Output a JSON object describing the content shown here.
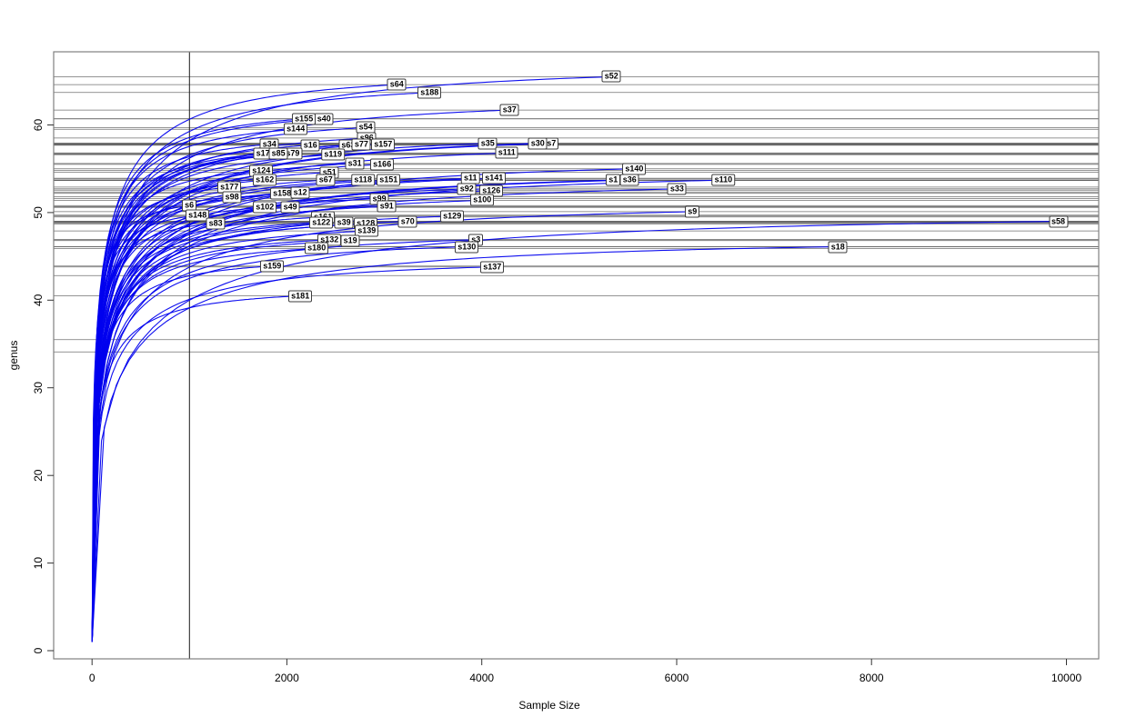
{
  "chart_data": {
    "type": "line",
    "title": "",
    "xlabel": "Sample Size",
    "ylabel": "genus",
    "xticks": [
      0,
      2000,
      4000,
      6000,
      8000,
      10000
    ],
    "yticks": [
      0,
      10,
      20,
      30,
      40,
      50,
      60
    ],
    "xlim": [
      -400,
      10350
    ],
    "ylim": [
      -1,
      68.5
    ],
    "grid": false,
    "legend": "none",
    "curve_color": "#0000ee",
    "hline_color": "#4d4d4d",
    "vline_color": "#1a1a1a",
    "box_color": "#808080",
    "vline_x": 1000,
    "curve_start": {
      "size": 1,
      "genus": 1
    },
    "extra_hlines": [
      42.8,
      35.5,
      34.1
    ],
    "samples": [
      {
        "name": "s64",
        "size": 3128,
        "genus": 64.6
      },
      {
        "name": "s188",
        "size": 3464,
        "genus": 63.7
      },
      {
        "name": "s52",
        "size": 5331,
        "genus": 65.5
      },
      {
        "name": "s37",
        "size": 4286,
        "genus": 61.7
      },
      {
        "name": "s40",
        "size": 2381,
        "genus": 60.7
      },
      {
        "name": "s155",
        "size": 2175,
        "genus": 60.7
      },
      {
        "name": "s144",
        "size": 2091,
        "genus": 59.5
      },
      {
        "name": "s54",
        "size": 2810,
        "genus": 59.7
      },
      {
        "name": "s96",
        "size": 2820,
        "genus": 58.5
      },
      {
        "name": "s34",
        "size": 1821,
        "genus": 57.8
      },
      {
        "name": "s16",
        "size": 2241,
        "genus": 57.7
      },
      {
        "name": "s63",
        "size": 2630,
        "genus": 57.7
      },
      {
        "name": "s77",
        "size": 2765,
        "genus": 57.8
      },
      {
        "name": "s157",
        "size": 2988,
        "genus": 57.8
      },
      {
        "name": "s35",
        "size": 4062,
        "genus": 57.9
      },
      {
        "name": "s7",
        "size": 4715,
        "genus": 57.9
      },
      {
        "name": "s30",
        "size": 4575,
        "genus": 57.9
      },
      {
        "name": "s111",
        "size": 4258,
        "genus": 56.8
      },
      {
        "name": "s17",
        "size": 1755,
        "genus": 56.7
      },
      {
        "name": "s79",
        "size": 2060,
        "genus": 56.7
      },
      {
        "name": "s85",
        "size": 1914,
        "genus": 56.7
      },
      {
        "name": "s119",
        "size": 2474,
        "genus": 56.6
      },
      {
        "name": "s31",
        "size": 2698,
        "genus": 55.6
      },
      {
        "name": "s166",
        "size": 2978,
        "genus": 55.5
      },
      {
        "name": "s140",
        "size": 5565,
        "genus": 55.0
      },
      {
        "name": "s124",
        "size": 1737,
        "genus": 54.8
      },
      {
        "name": "s51",
        "size": 2437,
        "genus": 54.6
      },
      {
        "name": "s11",
        "size": 3884,
        "genus": 53.9
      },
      {
        "name": "s141",
        "size": 4127,
        "genus": 53.9
      },
      {
        "name": "s1",
        "size": 5350,
        "genus": 53.7
      },
      {
        "name": "s36",
        "size": 5518,
        "genus": 53.7
      },
      {
        "name": "s162",
        "size": 1774,
        "genus": 53.7
      },
      {
        "name": "s67",
        "size": 2400,
        "genus": 53.7
      },
      {
        "name": "s118",
        "size": 2782,
        "genus": 53.7
      },
      {
        "name": "s151",
        "size": 3044,
        "genus": 53.7
      },
      {
        "name": "s110",
        "size": 6480,
        "genus": 53.7
      },
      {
        "name": "s33",
        "size": 6004,
        "genus": 52.7
      },
      {
        "name": "s177",
        "size": 1410,
        "genus": 52.9
      },
      {
        "name": "s92",
        "size": 3847,
        "genus": 52.7
      },
      {
        "name": "s126",
        "size": 4099,
        "genus": 52.5
      },
      {
        "name": "s98",
        "size": 1438,
        "genus": 51.8
      },
      {
        "name": "s158",
        "size": 1951,
        "genus": 52.2
      },
      {
        "name": "s12",
        "size": 2138,
        "genus": 52.3
      },
      {
        "name": "s99",
        "size": 2950,
        "genus": 51.6
      },
      {
        "name": "s100",
        "size": 4006,
        "genus": 51.4
      },
      {
        "name": "s6",
        "size": 999,
        "genus": 50.8
      },
      {
        "name": "s102",
        "size": 1775,
        "genus": 50.6
      },
      {
        "name": "s49",
        "size": 2035,
        "genus": 50.6
      },
      {
        "name": "s91",
        "size": 3025,
        "genus": 50.7
      },
      {
        "name": "s148",
        "size": 1083,
        "genus": 49.7
      },
      {
        "name": "s161",
        "size": 2371,
        "genus": 49.5
      },
      {
        "name": "s129",
        "size": 3697,
        "genus": 49.6
      },
      {
        "name": "s9",
        "size": 6162,
        "genus": 50.1
      },
      {
        "name": "s83",
        "size": 1270,
        "genus": 48.8
      },
      {
        "name": "s122",
        "size": 2353,
        "genus": 48.9
      },
      {
        "name": "s39",
        "size": 2586,
        "genus": 48.9
      },
      {
        "name": "s128",
        "size": 2810,
        "genus": 48.7
      },
      {
        "name": "s70",
        "size": 3240,
        "genus": 49.0
      },
      {
        "name": "s58",
        "size": 9916,
        "genus": 49.0
      },
      {
        "name": "s139",
        "size": 2820,
        "genus": 47.9
      },
      {
        "name": "s132",
        "size": 2437,
        "genus": 46.9
      },
      {
        "name": "s19",
        "size": 2651,
        "genus": 46.8
      },
      {
        "name": "s3",
        "size": 3940,
        "genus": 46.9
      },
      {
        "name": "s180",
        "size": 2306,
        "genus": 45.9
      },
      {
        "name": "s130",
        "size": 3847,
        "genus": 46.1
      },
      {
        "name": "s18",
        "size": 7656,
        "genus": 46.1
      },
      {
        "name": "s159",
        "size": 1849,
        "genus": 43.9
      },
      {
        "name": "s137",
        "size": 4108,
        "genus": 43.8
      },
      {
        "name": "s181",
        "size": 2138,
        "genus": 40.5
      }
    ]
  }
}
